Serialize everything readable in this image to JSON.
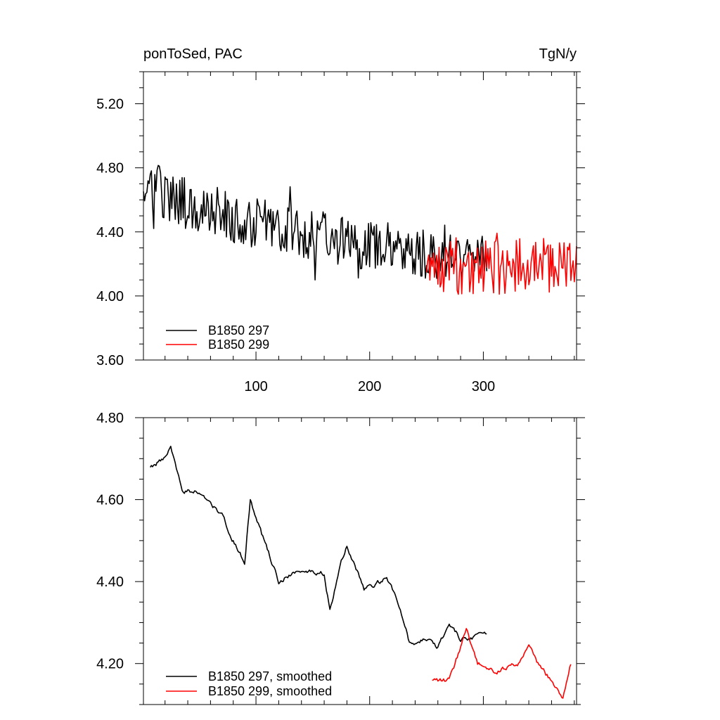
{
  "chart_data": [
    {
      "type": "line",
      "title_left": "ponToSed, PAC",
      "title_right": "TgN/y",
      "xlabel": "",
      "ylabel": "",
      "xlim": [
        1,
        382
      ],
      "ylim": [
        3.6,
        5.4
      ],
      "x_ticks": [
        100,
        200,
        300
      ],
      "x_tick_labels": [
        "100",
        "200",
        "300"
      ],
      "y_ticks": [
        3.6,
        4.0,
        4.4,
        4.8,
        5.2
      ],
      "y_tick_labels": [
        "3.60",
        "4.00",
        "4.40",
        "4.80",
        "5.20"
      ],
      "legend_position": "bottom-left",
      "series": [
        {
          "name": "B1850 297",
          "color": "#000000",
          "x_start": 1,
          "x_end": 303,
          "trend_points": [
            [
              1,
              4.7
            ],
            [
              50,
              4.55
            ],
            [
              100,
              4.45
            ],
            [
              150,
              4.38
            ],
            [
              200,
              4.32
            ],
            [
              250,
              4.25
            ],
            [
              303,
              4.22
            ]
          ],
          "spread": 0.16,
          "seed": 297
        },
        {
          "name": "B1850 299",
          "color": "#ff0000",
          "x_start": 250,
          "x_end": 382,
          "trend_points": [
            [
              250,
              4.2
            ],
            [
              300,
              4.18
            ],
            [
              350,
              4.2
            ],
            [
              382,
              4.2
            ]
          ],
          "spread": 0.18,
          "seed": 299
        }
      ]
    },
    {
      "type": "line",
      "xlabel": "",
      "ylabel": "",
      "xlim": [
        1,
        382
      ],
      "ylim": [
        4.1,
        4.8
      ],
      "x_ticks": [
        100,
        200,
        300
      ],
      "y_ticks": [
        4.2,
        4.4,
        4.6,
        4.8
      ],
      "y_tick_labels": [
        "4.20",
        "4.40",
        "4.60",
        "4.80"
      ],
      "legend_position": "bottom-left",
      "series": [
        {
          "name": "B1850 297, smoothed",
          "color": "#000000",
          "x_start": 7,
          "x_end": 303,
          "trend_points": [
            [
              7,
              4.68
            ],
            [
              20,
              4.7
            ],
            [
              25,
              4.73
            ],
            [
              35,
              4.62
            ],
            [
              50,
              4.62
            ],
            [
              70,
              4.56
            ],
            [
              80,
              4.5
            ],
            [
              90,
              4.45
            ],
            [
              95,
              4.6
            ],
            [
              100,
              4.55
            ],
            [
              110,
              4.48
            ],
            [
              120,
              4.4
            ],
            [
              140,
              4.43
            ],
            [
              160,
              4.42
            ],
            [
              165,
              4.33
            ],
            [
              175,
              4.45
            ],
            [
              180,
              4.49
            ],
            [
              195,
              4.38
            ],
            [
              215,
              4.41
            ],
            [
              225,
              4.35
            ],
            [
              235,
              4.25
            ],
            [
              250,
              4.26
            ],
            [
              260,
              4.24
            ],
            [
              270,
              4.3
            ],
            [
              280,
              4.26
            ],
            [
              303,
              4.27
            ]
          ],
          "spread": 0.012,
          "seed": 2971
        },
        {
          "name": "B1850 299, smoothed",
          "color": "#ff0000",
          "x_start": 255,
          "x_end": 377,
          "trend_points": [
            [
              255,
              4.16
            ],
            [
              270,
              4.16
            ],
            [
              285,
              4.28
            ],
            [
              295,
              4.2
            ],
            [
              310,
              4.18
            ],
            [
              330,
              4.2
            ],
            [
              340,
              4.24
            ],
            [
              350,
              4.19
            ],
            [
              360,
              4.16
            ],
            [
              370,
              4.12
            ],
            [
              377,
              4.2
            ]
          ],
          "spread": 0.012,
          "seed": 2991
        }
      ]
    }
  ]
}
